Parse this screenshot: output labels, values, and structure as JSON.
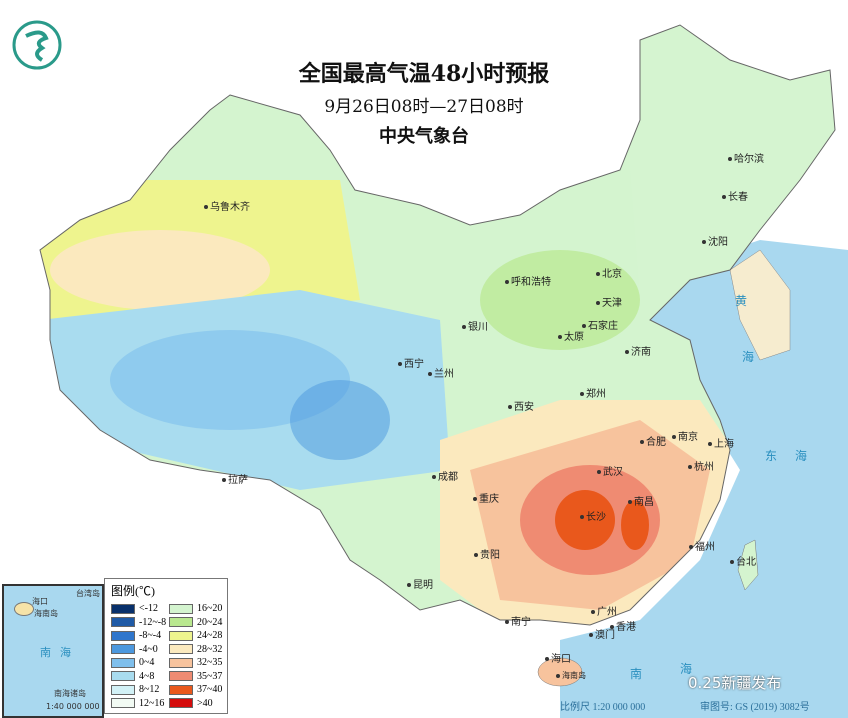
{
  "header": {
    "title": "全国最高气温48小时预报",
    "period": "9月26日08时—27日08时",
    "issuer": "中央气象台"
  },
  "logo": {
    "icon": "cma-logo-icon",
    "color": "#2a9a8a"
  },
  "cities": [
    "乌鲁木齐",
    "哈尔滨",
    "长春",
    "沈阳",
    "呼和浩特",
    "北京",
    "天津",
    "石家庄",
    "太原",
    "银川",
    "西宁",
    "兰州",
    "济南",
    "郑州",
    "西安",
    "合肥",
    "南京",
    "上海",
    "杭州",
    "武汉",
    "成都",
    "重庆",
    "拉萨",
    "长沙",
    "南昌",
    "贵阳",
    "福州",
    "台北",
    "昆明",
    "南宁",
    "广州",
    "香港",
    "澳门",
    "海口",
    "海南岛"
  ],
  "seas": [
    "黄",
    "海",
    "东",
    "海",
    "南",
    "海"
  ],
  "legend": {
    "title": "图例(℃)",
    "items": [
      {
        "label": "<-12",
        "color": "#08306b"
      },
      {
        "label": "-12~-8",
        "color": "#1f5aa6"
      },
      {
        "label": "-8~-4",
        "color": "#2f76cc"
      },
      {
        "label": "-4~0",
        "color": "#4c98de"
      },
      {
        "label": "0~4",
        "color": "#7fbfec"
      },
      {
        "label": "4~8",
        "color": "#a9dcef"
      },
      {
        "label": "8~12",
        "color": "#d2f1f6"
      },
      {
        "label": "12~16",
        "color": "#f2fbf4"
      },
      {
        "label": "16~20",
        "color": "#d4f4cf"
      },
      {
        "label": "20~24",
        "color": "#b9e88f"
      },
      {
        "label": "24~28",
        "color": "#eef48e"
      },
      {
        "label": "28~32",
        "color": "#fbe9be"
      },
      {
        "label": "32~35",
        "color": "#f7c39d"
      },
      {
        "label": "35~37",
        "color": "#ef8b72"
      },
      {
        "label": "37~40",
        "color": "#e9581c"
      },
      {
        "label": ">40",
        "color": "#d40c0c"
      }
    ]
  },
  "inset": {
    "labels": [
      "海口",
      "海南岛",
      "南",
      "海",
      "台湾岛",
      "南海诸岛",
      "1:40 000 000"
    ]
  },
  "footer": {
    "scale": "比例尺 1:20 000 000",
    "map_number": "审图号: GS (2019) 3082号",
    "watermark": "0.25新疆发布"
  }
}
